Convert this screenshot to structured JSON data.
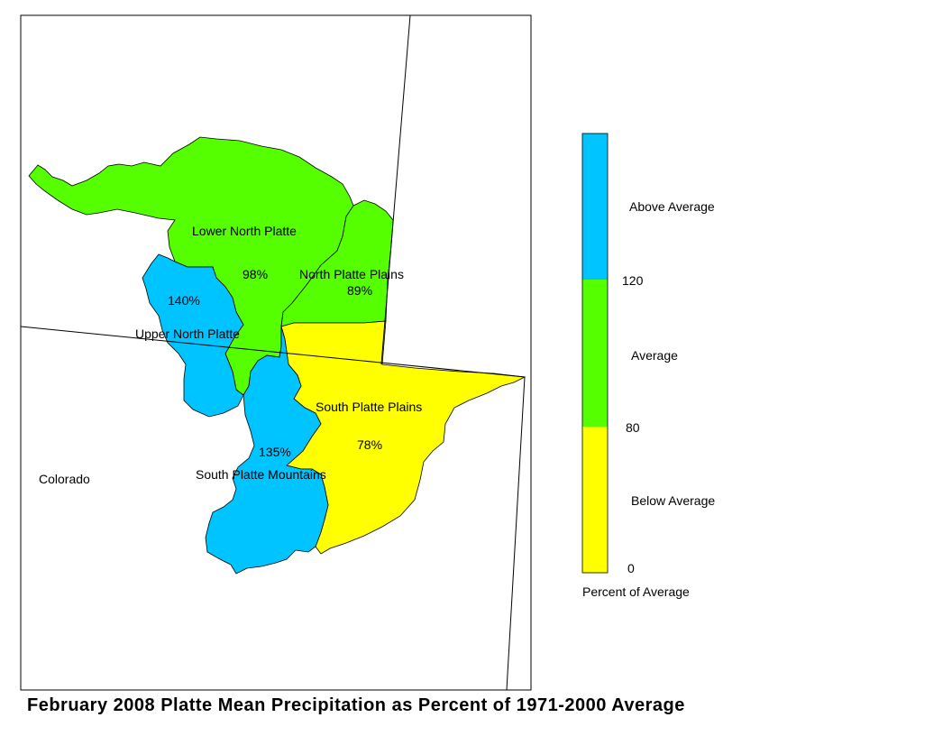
{
  "title": "February 2008 Platte Mean Precipitation as Percent of 1971-2000 Average",
  "colors": {
    "above": "#00c4ff",
    "average": "#55ff00",
    "below": "#ffff00",
    "outline": "#000000"
  },
  "state_label": "Colorado",
  "basins": [
    {
      "id": "lower-north-platte",
      "name": "Lower North Platte",
      "percent": "98%",
      "category": "average"
    },
    {
      "id": "north-platte-plains",
      "name": "North Platte Plains",
      "percent": "89%",
      "category": "average"
    },
    {
      "id": "upper-north-platte",
      "name": "Upper North Platte",
      "percent": "140%",
      "category": "above"
    },
    {
      "id": "south-platte-plains",
      "name": "South Platte Plains",
      "percent": "78%",
      "category": "below"
    },
    {
      "id": "south-platte-mountains",
      "name": "South Platte Mountains",
      "percent": "135%",
      "category": "above"
    }
  ],
  "legend": {
    "classes": [
      {
        "label": "Above Average",
        "color": "#00c4ff"
      },
      {
        "label": "Average",
        "color": "#55ff00"
      },
      {
        "label": "Below Average",
        "color": "#ffff00"
      }
    ],
    "breaks": [
      "120",
      "80",
      "0"
    ],
    "caption": "Percent of Average"
  }
}
